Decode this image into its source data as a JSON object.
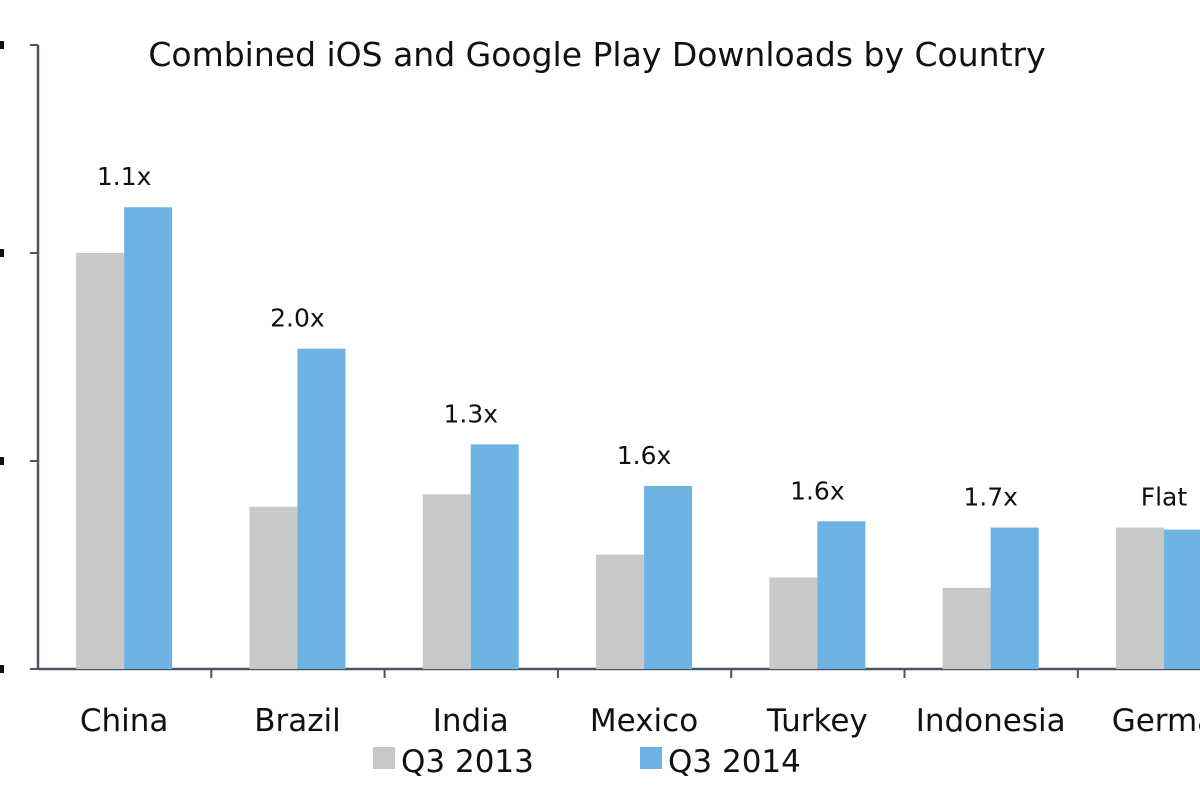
{
  "chart_data": {
    "type": "bar",
    "title": "Combined iOS and Google Play Downloads by Country",
    "xlabel": "",
    "ylabel": "",
    "ylim": [
      0,
      3
    ],
    "y_ticks_visible_labels": false,
    "grid": false,
    "legend_placement": "bottom-center",
    "categories": [
      "China",
      "Brazil",
      "India",
      "Mexico",
      "Turkey",
      "Indonesia",
      "Germa"
    ],
    "series": [
      {
        "name": "Q3 2013",
        "color": "#c8c8c8",
        "values": [
          2.0,
          0.78,
          0.84,
          0.55,
          0.44,
          0.39,
          0.68
        ]
      },
      {
        "name": "Q3 2014",
        "color": "#6cb2e2",
        "values": [
          2.22,
          1.54,
          1.08,
          0.88,
          0.71,
          0.68,
          0.67
        ]
      }
    ],
    "annotations": [
      "1.1x",
      "2.0x",
      "1.3x",
      "1.6x",
      "1.6x",
      "1.7x",
      "Flat"
    ]
  }
}
